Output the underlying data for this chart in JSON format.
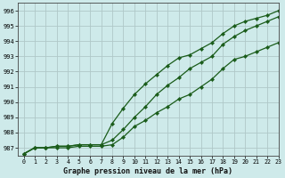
{
  "title": "Graphe pression niveau de la mer (hPa)",
  "bg_color": "#ceeaea",
  "grid_color": "#b0c8c8",
  "line_color": "#1a5c1a",
  "marker_color": "#1a5c1a",
  "xlim": [
    -0.5,
    23
  ],
  "ylim": [
    986.5,
    996.5
  ],
  "yticks": [
    987,
    988,
    989,
    990,
    991,
    992,
    993,
    994,
    995,
    996
  ],
  "xticks": [
    0,
    1,
    2,
    3,
    4,
    5,
    6,
    7,
    8,
    9,
    10,
    11,
    12,
    13,
    14,
    15,
    16,
    17,
    18,
    19,
    20,
    21,
    22,
    23
  ],
  "series": [
    [
      986.6,
      987.0,
      987.0,
      987.1,
      987.1,
      987.2,
      987.2,
      987.2,
      988.6,
      989.6,
      990.5,
      991.2,
      991.8,
      992.4,
      992.9,
      993.1,
      993.5,
      993.9,
      994.5,
      995.0,
      995.3,
      995.5,
      995.7,
      996.0
    ],
    [
      986.6,
      987.0,
      987.0,
      987.1,
      987.1,
      987.2,
      987.2,
      987.2,
      987.5,
      988.2,
      989.0,
      989.7,
      990.5,
      991.1,
      991.6,
      992.2,
      992.6,
      993.0,
      993.8,
      994.3,
      994.7,
      995.0,
      995.3,
      995.6
    ],
    [
      986.6,
      987.0,
      987.0,
      987.0,
      987.0,
      987.1,
      987.1,
      987.1,
      987.2,
      987.7,
      988.4,
      988.8,
      989.3,
      989.7,
      990.2,
      990.5,
      991.0,
      991.5,
      992.2,
      992.8,
      993.0,
      993.3,
      993.6,
      993.9
    ]
  ]
}
